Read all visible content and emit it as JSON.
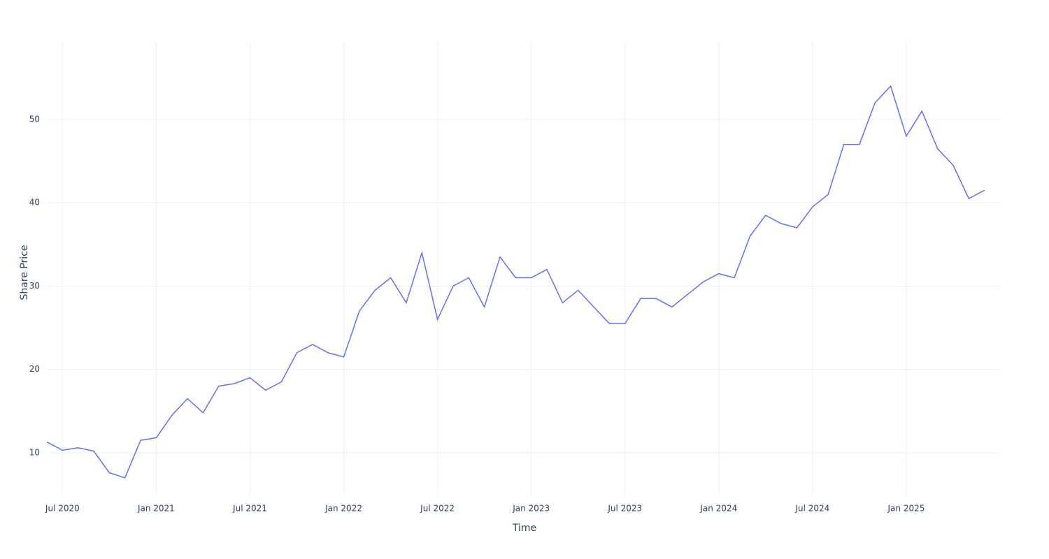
{
  "chart_data": {
    "type": "line",
    "x_label": "Time",
    "y_label": "Share Price",
    "x": [
      "2020-06",
      "2020-07",
      "2020-08",
      "2020-09",
      "2020-10",
      "2020-11",
      "2020-12",
      "2021-01",
      "2021-02",
      "2021-03",
      "2021-04",
      "2021-05",
      "2021-06",
      "2021-07",
      "2021-08",
      "2021-09",
      "2021-10",
      "2021-11",
      "2021-12",
      "2022-01",
      "2022-02",
      "2022-03",
      "2022-04",
      "2022-05",
      "2022-06",
      "2022-07",
      "2022-08",
      "2022-09",
      "2022-10",
      "2022-11",
      "2022-12",
      "2023-01",
      "2023-02",
      "2023-03",
      "2023-04",
      "2023-05",
      "2023-06",
      "2023-07",
      "2023-08",
      "2023-09",
      "2023-10",
      "2023-11",
      "2023-12",
      "2024-01",
      "2024-02",
      "2024-03",
      "2024-04",
      "2024-05",
      "2024-06",
      "2024-07",
      "2024-08",
      "2024-09",
      "2024-10",
      "2024-11",
      "2024-12",
      "2025-01",
      "2025-02",
      "2025-03",
      "2025-04",
      "2025-05",
      "2025-06"
    ],
    "series": [
      {
        "color": "#636efa",
        "values": [
          11.3,
          10.3,
          10.6,
          10.2,
          7.6,
          7.0,
          11.5,
          11.8,
          14.5,
          16.5,
          14.8,
          18.0,
          18.3,
          19.0,
          17.5,
          18.5,
          22.0,
          23.0,
          22.0,
          21.5,
          27.0,
          29.5,
          31.0,
          28.0,
          34.0,
          26.0,
          30.0,
          31.0,
          27.5,
          33.5,
          31.0,
          31.0,
          32.0,
          28.0,
          29.5,
          27.5,
          25.5,
          25.5,
          28.5,
          28.5,
          27.5,
          29.0,
          30.5,
          31.5,
          31.0,
          36.0,
          38.5,
          37.5,
          37.0,
          39.5,
          41.0,
          47.0,
          47.0,
          52.0,
          54.0,
          48.0,
          51.0,
          46.5,
          44.5,
          40.5,
          41.5
        ]
      }
    ],
    "xlim": [
      "2020-06",
      "2025-07"
    ],
    "xticks": [
      {
        "value": "2020-07",
        "label": "Jul 2020"
      },
      {
        "value": "2021-01",
        "label": "Jan 2021"
      },
      {
        "value": "2021-07",
        "label": "Jul 2021"
      },
      {
        "value": "2022-01",
        "label": "Jan 2022"
      },
      {
        "value": "2022-07",
        "label": "Jul 2022"
      },
      {
        "value": "2023-01",
        "label": "Jan 2023"
      },
      {
        "value": "2023-07",
        "label": "Jul 2023"
      },
      {
        "value": "2024-01",
        "label": "Jan 2024"
      },
      {
        "value": "2024-07",
        "label": "Jul 2024"
      },
      {
        "value": "2025-01",
        "label": "Jan 2025"
      }
    ],
    "ylim": [
      4.8,
      59.3
    ],
    "yticks": [
      10,
      20,
      30,
      40,
      50
    ],
    "grid": true
  }
}
